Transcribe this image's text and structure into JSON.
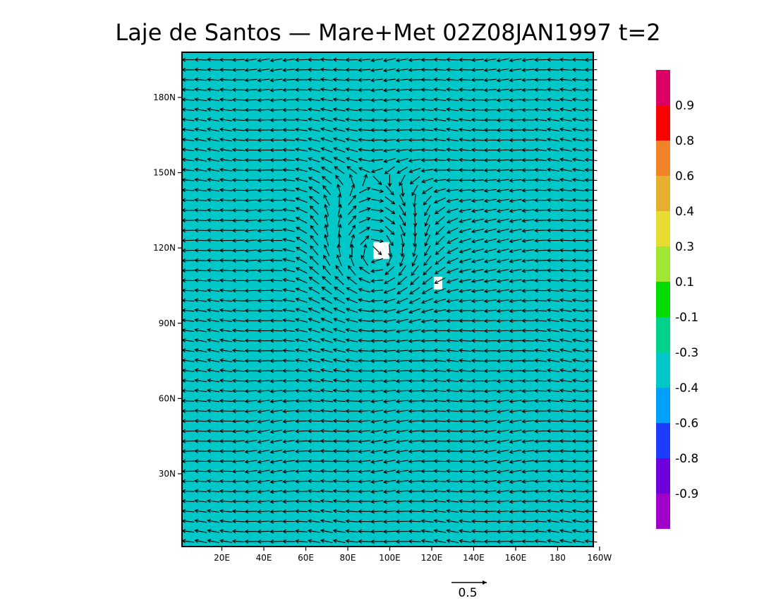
{
  "chart_data": {
    "type": "vector-field",
    "title": "Laje de Santos — Mare+Met 02Z08JAN1997 t=2",
    "x_ticks": [
      "20E",
      "40E",
      "60E",
      "80E",
      "100E",
      "120E",
      "140E",
      "160E",
      "180",
      "160W"
    ],
    "x_tick_values": [
      20,
      40,
      60,
      80,
      100,
      120,
      140,
      160,
      180,
      200
    ],
    "y_ticks": [
      "30N",
      "60N",
      "90N",
      "120N",
      "150N",
      "180N"
    ],
    "y_tick_values": [
      30,
      60,
      90,
      120,
      150,
      180
    ],
    "xlim": [
      1,
      197
    ],
    "ylim": [
      1,
      198
    ],
    "shading_value_range": [
      -0.4,
      -0.3
    ],
    "land_mask_points": [
      [
        96,
        119
      ],
      [
        123,
        106
      ]
    ],
    "vector_field_summary": {
      "dominant_direction": "westward",
      "typical_magnitude": 0.45,
      "eddy_center": [
        93,
        118
      ],
      "eddy_radius": 24,
      "eddy_rotation": "clockwise"
    },
    "vector_reference": {
      "label": "0.5",
      "value": 0.5
    },
    "colorbar": {
      "colors": [
        "#a000c8",
        "#6e00dc",
        "#1e3cff",
        "#00a0ff",
        "#00c8c8",
        "#00d28c",
        "#00dc00",
        "#a0e632",
        "#e6dc32",
        "#e6af2d",
        "#f08228",
        "#fa0000",
        "#dc0064"
      ],
      "labels": [
        "-0.9",
        "-0.8",
        "-0.6",
        "-0.4",
        "-0.3",
        "-0.1",
        "0.1",
        "0.3",
        "0.4",
        "0.6",
        "0.8",
        "0.9"
      ]
    }
  }
}
